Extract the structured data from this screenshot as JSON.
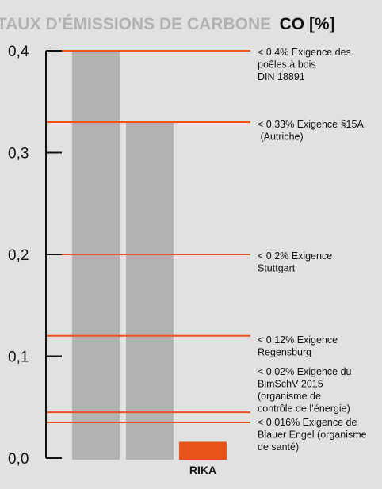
{
  "chart_data": {
    "type": "bar",
    "title": "TAUX D’ÉMISSIONS DE CARBONE",
    "title_unit": "CO [%]",
    "xlabel": "",
    "ylabel": "",
    "ylim": [
      0,
      0.4
    ],
    "yticks": [
      {
        "value": 0.0,
        "label": "0,0"
      },
      {
        "value": 0.1,
        "label": "0,1"
      },
      {
        "value": 0.2,
        "label": "0,2"
      },
      {
        "value": 0.3,
        "label": "0,3"
      },
      {
        "value": 0.4,
        "label": "0,4"
      }
    ],
    "categories": [
      "",
      "",
      "RIKA"
    ],
    "values": [
      0.4,
      0.33,
      0.016
    ],
    "bar_colors": [
      "#b2b2b2",
      "#b2b2b2",
      "#e8541a"
    ],
    "line_color": "#e8541a",
    "grid": false,
    "reference_lines": [
      {
        "value": 0.4,
        "text": [
          "< 0,4% Exigence des",
          "poêles à bois",
          "DIN 18891"
        ]
      },
      {
        "value": 0.33,
        "text": [
          "< 0,33% Exigence §15A",
          " (Autriche)"
        ]
      },
      {
        "value": 0.2,
        "text": [
          "< 0,2% Exigence",
          "Stuttgart"
        ]
      },
      {
        "value": 0.12,
        "text": [
          "< 0,12% Exigence",
          "Regensburg"
        ]
      },
      {
        "value": 0.045,
        "text": [
          "< 0,02% Exigence du",
          "BimSchV 2015",
          "(organisme de",
          "contrôle de l’énergie)"
        ]
      },
      {
        "value": 0.035,
        "text": [
          "< 0,016% Exigence de",
          "Blauer Engel (organisme",
          "de santé)"
        ]
      }
    ]
  }
}
